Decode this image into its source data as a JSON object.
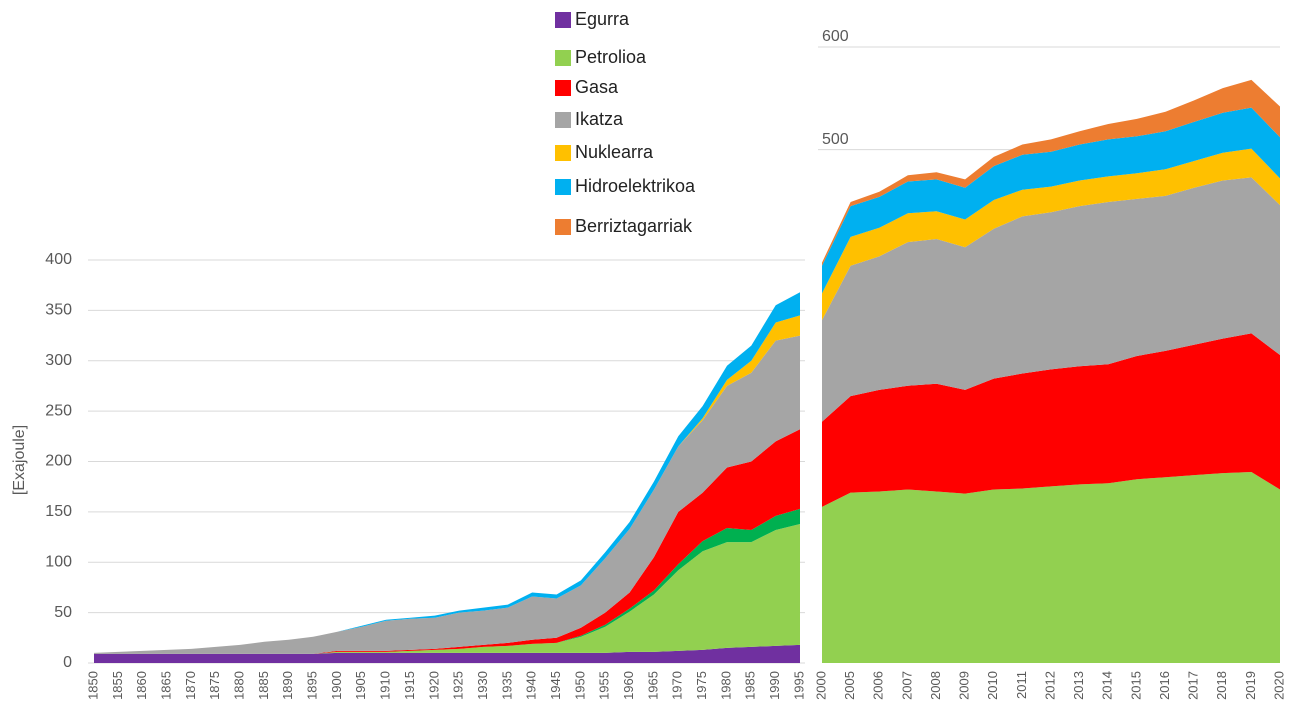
{
  "chart_data": [
    {
      "type": "area",
      "x": [
        1850,
        1855,
        1860,
        1865,
        1870,
        1875,
        1880,
        1885,
        1890,
        1895,
        1900,
        1905,
        1910,
        1915,
        1920,
        1925,
        1930,
        1935,
        1940,
        1945,
        1950,
        1955,
        1960,
        1965,
        1970,
        1975,
        1980,
        1985,
        1990,
        1995
      ],
      "ylabel": "[Exajoule]",
      "ylim": [
        0,
        400
      ],
      "yticks": [
        0,
        50,
        100,
        150,
        200,
        250,
        300,
        350,
        400
      ],
      "grid": true,
      "series": [
        {
          "name": "Egurra",
          "color": "#7030a0",
          "values": [
            9,
            9,
            9,
            9,
            9,
            9,
            9,
            9,
            9,
            9,
            10,
            10,
            10,
            10,
            10,
            10,
            10,
            10,
            10,
            10,
            10,
            10,
            11,
            11,
            12,
            13,
            15,
            16,
            17,
            18
          ]
        },
        {
          "name": "Petrolioa",
          "color": "#92d050",
          "values": [
            0,
            0,
            0,
            0,
            0,
            0,
            0,
            0,
            0,
            0,
            1,
            1,
            1,
            2,
            3,
            4,
            6,
            7,
            9,
            10,
            16,
            26,
            40,
            57,
            80,
            98,
            105,
            104,
            115,
            120
          ]
        },
        {
          "color": "#00b050",
          "values": [
            0,
            0,
            0,
            0,
            0,
            0,
            0,
            0,
            0,
            0,
            0,
            0,
            0,
            0,
            0,
            0,
            0,
            0,
            0,
            0,
            1,
            2,
            3,
            4,
            6,
            10,
            14,
            12,
            14,
            15
          ]
        },
        {
          "name": "Gasa",
          "color": "#ff0000",
          "values": [
            0,
            0,
            0,
            0,
            0,
            0,
            0,
            0,
            0,
            0,
            1,
            1,
            1,
            1,
            1,
            2,
            2,
            3,
            4,
            5,
            8,
            12,
            16,
            33,
            52,
            48,
            60,
            68,
            74,
            79
          ]
        },
        {
          "name": "Ikatza",
          "color": "#a5a5a5",
          "values": [
            1,
            2,
            3,
            4,
            5,
            7,
            9,
            12,
            14,
            17,
            19,
            24,
            30,
            31,
            31,
            34,
            34,
            35,
            43,
            39,
            42,
            54,
            63,
            67,
            65,
            72,
            81,
            88,
            100,
            93
          ]
        },
        {
          "name": "Nuklearra",
          "color": "#ffc000",
          "values": [
            0,
            0,
            0,
            0,
            0,
            0,
            0,
            0,
            0,
            0,
            0,
            0,
            0,
            0,
            0,
            0,
            0,
            0,
            0,
            0,
            0,
            0,
            0,
            0,
            0,
            2,
            6,
            12,
            18,
            20
          ]
        },
        {
          "name": "Hidroelektrikoa",
          "color": "#00b0f0",
          "values": [
            0,
            0,
            0,
            0,
            0,
            0,
            0,
            0,
            0,
            0,
            0,
            1,
            1,
            1,
            2,
            2,
            3,
            3,
            4,
            4,
            5,
            6,
            7,
            8,
            10,
            12,
            14,
            15,
            17,
            23
          ]
        }
      ]
    },
    {
      "type": "area",
      "categories": [
        "2000",
        "2005",
        "2006",
        "2007",
        "2008",
        "2009",
        "2010",
        "2011",
        "2012",
        "2013",
        "2014",
        "2015",
        "2016",
        "2017",
        "2018",
        "2019",
        "2020"
      ],
      "ylim": [
        0,
        600
      ],
      "yticks": [
        500,
        600
      ],
      "grid": true,
      "series": [
        {
          "color": "#92d050",
          "values": [
            152,
            166,
            167,
            169,
            167,
            165,
            169,
            170,
            172,
            174,
            175,
            179,
            181,
            183,
            185,
            186,
            169
          ]
        },
        {
          "color": "#ff0000",
          "values": [
            83,
            94,
            99,
            101,
            105,
            101,
            108,
            112,
            114,
            115,
            116,
            120,
            123,
            127,
            131,
            135,
            131
          ]
        },
        {
          "color": "#a5a5a5",
          "values": [
            99,
            127,
            130,
            140,
            141,
            139,
            146,
            153,
            153,
            156,
            158,
            153,
            151,
            153,
            154,
            152,
            146
          ]
        },
        {
          "color": "#ffc000",
          "values": [
            26,
            28,
            28,
            28,
            27,
            27,
            28,
            26,
            25,
            25,
            25,
            25,
            26,
            26,
            27,
            28,
            26
          ]
        },
        {
          "color": "#00b0f0",
          "values": [
            27,
            30,
            30,
            31,
            31,
            31,
            33,
            34,
            34,
            35,
            36,
            36,
            37,
            38,
            39,
            40,
            40
          ]
        },
        {
          "name": "Berriztagarriak",
          "color": "#ed7d31",
          "values": [
            3,
            4,
            5,
            6,
            7,
            8,
            9,
            10,
            12,
            13,
            15,
            17,
            19,
            21,
            24,
            27,
            30
          ]
        }
      ]
    }
  ]
}
